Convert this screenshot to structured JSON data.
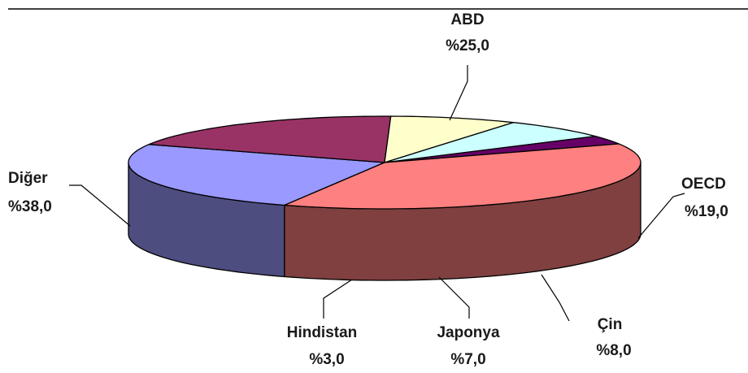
{
  "chart_data": {
    "type": "pie",
    "style": "3d",
    "title": "",
    "slices": [
      {
        "label": "ABD",
        "value_label": "%25,0",
        "value": 25.0,
        "color": "#9999ff",
        "side_color": "#4d4d80"
      },
      {
        "label": "OECD",
        "value_label": "%19,0",
        "value": 19.0,
        "color": "#993366",
        "side_color": "#4d1a33"
      },
      {
        "label": "Çin",
        "value_label": "%8,0",
        "value": 8.0,
        "color": "#ffffcc",
        "side_color": "#808066"
      },
      {
        "label": "Japonya",
        "value_label": "%7,0",
        "value": 7.0,
        "color": "#ccffff",
        "side_color": "#668080"
      },
      {
        "label": "Hindistan",
        "value_label": "%3,0",
        "value": 3.0,
        "color": "#660066",
        "side_color": "#330033"
      },
      {
        "label": "Diğer",
        "value_label": "%38,0",
        "value": 38.0,
        "color": "#ff8080",
        "side_color": "#804040"
      }
    ]
  }
}
